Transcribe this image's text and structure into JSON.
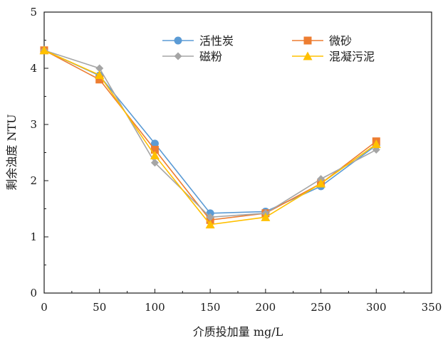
{
  "chart_data": {
    "type": "line",
    "xlabel": "介质投加量 mg/L",
    "ylabel": "剩余浊度 NTU",
    "xlim": [
      0,
      350
    ],
    "ylim": [
      0,
      5
    ],
    "xticks": [
      0,
      50,
      100,
      150,
      200,
      250,
      300,
      350
    ],
    "yticks": [
      0,
      1,
      2,
      3,
      4,
      5
    ],
    "x": [
      0,
      50,
      100,
      150,
      200,
      250,
      300
    ],
    "grid": false,
    "legend_position": "top",
    "series": [
      {
        "name": "活性炭",
        "color": "#5b9bd5",
        "marker": "circle",
        "values": [
          4.32,
          3.87,
          2.66,
          1.42,
          1.45,
          1.9,
          2.63
        ]
      },
      {
        "name": "微砂",
        "color": "#ed7d31",
        "marker": "square",
        "values": [
          4.32,
          3.8,
          2.55,
          1.3,
          1.42,
          1.95,
          2.7
        ]
      },
      {
        "name": "磁粉",
        "color": "#a5a5a5",
        "marker": "diamond",
        "values": [
          4.32,
          4.0,
          2.32,
          1.35,
          1.42,
          2.03,
          2.55
        ]
      },
      {
        "name": "混凝污泥",
        "color": "#ffc000",
        "marker": "triangle",
        "values": [
          4.32,
          3.88,
          2.45,
          1.22,
          1.35,
          1.95,
          2.65
        ]
      }
    ]
  }
}
